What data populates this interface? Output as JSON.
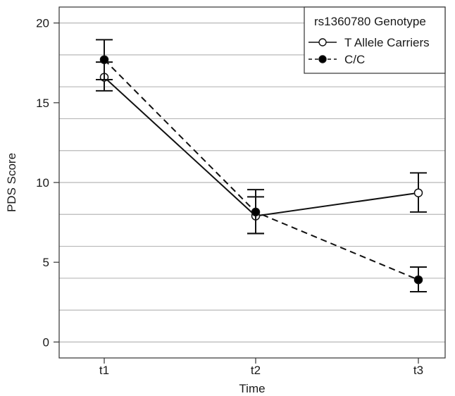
{
  "chart_data": {
    "type": "line",
    "xlabel": "Time",
    "ylabel": "PDS Score",
    "categories": [
      "t1",
      "t2",
      "t3"
    ],
    "ylim": [
      -1,
      21
    ],
    "yticks": [
      0,
      5,
      10,
      15,
      20
    ],
    "grid": "horizontal, every 2 units",
    "legend": {
      "title": "rs1360780 Genotype",
      "placement": "top-right"
    },
    "series": [
      {
        "name": "T Allele Carriers",
        "marker": "open-circle",
        "line": "solid",
        "values": [
          16.6,
          7.9,
          9.35
        ],
        "error_low": [
          15.75,
          6.8,
          8.15
        ],
        "error_high": [
          17.55,
          9.1,
          10.6
        ]
      },
      {
        "name": "C/C",
        "marker": "filled-circle",
        "line": "dashed",
        "values": [
          17.7,
          8.15,
          3.9
        ],
        "error_low": [
          16.45,
          6.8,
          3.15
        ],
        "error_high": [
          18.95,
          9.55,
          4.7
        ]
      }
    ]
  }
}
